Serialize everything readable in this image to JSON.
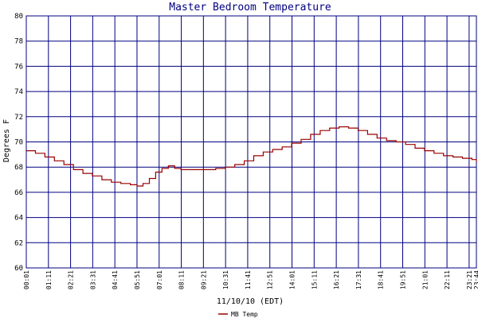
{
  "chart_data": {
    "type": "line",
    "title": "Master Bedroom Temperature",
    "xlabel": "11/10/10 (EDT)",
    "ylabel": "Degrees F",
    "ylim": [
      60,
      80
    ],
    "yticks": [
      "60",
      "62",
      "64",
      "66",
      "68",
      "70",
      "72",
      "74",
      "76",
      "78",
      "80"
    ],
    "xticks": [
      "00:01",
      "01:11",
      "02:21",
      "03:31",
      "04:41",
      "05:51",
      "07:01",
      "08:11",
      "09:21",
      "10:31",
      "11:41",
      "12:51",
      "14:01",
      "15:11",
      "16:21",
      "17:31",
      "18:41",
      "19:51",
      "21:01",
      "22:11",
      "23:21",
      "23:44"
    ],
    "grid": true,
    "legend_position": "bottom-left",
    "colors": {
      "grid": "#000080",
      "series": "#990000",
      "title": "#000080"
    },
    "series": [
      {
        "name": "MB Temp",
        "points": [
          [
            "00:01",
            69.3
          ],
          [
            "00:30",
            69.1
          ],
          [
            "01:00",
            68.8
          ],
          [
            "01:30",
            68.5
          ],
          [
            "02:00",
            68.2
          ],
          [
            "02:30",
            67.8
          ],
          [
            "03:00",
            67.5
          ],
          [
            "03:30",
            67.3
          ],
          [
            "04:00",
            67.0
          ],
          [
            "04:30",
            66.8
          ],
          [
            "05:00",
            66.7
          ],
          [
            "05:30",
            66.6
          ],
          [
            "05:51",
            66.5
          ],
          [
            "06:10",
            66.7
          ],
          [
            "06:30",
            67.1
          ],
          [
            "06:50",
            67.6
          ],
          [
            "07:10",
            67.9
          ],
          [
            "07:30",
            68.1
          ],
          [
            "07:50",
            67.9
          ],
          [
            "08:10",
            67.8
          ],
          [
            "08:30",
            67.8
          ],
          [
            "09:00",
            67.8
          ],
          [
            "09:30",
            67.8
          ],
          [
            "10:00",
            67.9
          ],
          [
            "10:30",
            68.0
          ],
          [
            "11:00",
            68.2
          ],
          [
            "11:30",
            68.5
          ],
          [
            "12:00",
            68.9
          ],
          [
            "12:30",
            69.2
          ],
          [
            "13:00",
            69.4
          ],
          [
            "13:30",
            69.6
          ],
          [
            "14:00",
            69.9
          ],
          [
            "14:30",
            70.2
          ],
          [
            "15:00",
            70.6
          ],
          [
            "15:30",
            70.9
          ],
          [
            "16:00",
            71.1
          ],
          [
            "16:30",
            71.2
          ],
          [
            "17:00",
            71.1
          ],
          [
            "17:30",
            70.9
          ],
          [
            "18:00",
            70.6
          ],
          [
            "18:30",
            70.3
          ],
          [
            "19:00",
            70.1
          ],
          [
            "19:30",
            70.0
          ],
          [
            "20:00",
            69.8
          ],
          [
            "20:30",
            69.5
          ],
          [
            "21:00",
            69.3
          ],
          [
            "21:30",
            69.1
          ],
          [
            "22:00",
            68.9
          ],
          [
            "22:30",
            68.8
          ],
          [
            "23:00",
            68.7
          ],
          [
            "23:30",
            68.6
          ],
          [
            "23:44",
            68.4
          ]
        ]
      }
    ]
  }
}
